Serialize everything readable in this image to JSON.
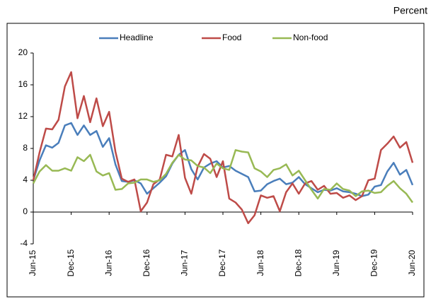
{
  "chart_data": {
    "type": "line",
    "unit_label": "Percent",
    "categories": [
      "Jun-15",
      null,
      null,
      null,
      null,
      null,
      "Dec-15",
      null,
      null,
      null,
      null,
      null,
      "Jun-16",
      null,
      null,
      null,
      null,
      null,
      "Dec-16",
      null,
      null,
      null,
      null,
      null,
      "Jun-17",
      null,
      null,
      null,
      null,
      null,
      "Dec-17",
      null,
      null,
      null,
      null,
      null,
      "Jun-18",
      null,
      null,
      null,
      null,
      null,
      "Dec-18",
      null,
      null,
      null,
      null,
      null,
      "Jun-19",
      null,
      null,
      null,
      null,
      null,
      "Dec-19",
      null,
      null,
      null,
      null,
      null,
      "Jun-20"
    ],
    "series": [
      {
        "name": "Headline",
        "color": "#4a7ebb",
        "values": [
          4.0,
          6.5,
          8.4,
          8.1,
          8.7,
          10.9,
          11.2,
          9.7,
          10.9,
          9.7,
          10.2,
          8.2,
          9.3,
          6.0,
          3.9,
          3.8,
          4.0,
          3.6,
          2.3,
          3.0,
          3.7,
          4.5,
          6.1,
          7.2,
          7.8,
          5.4,
          4.1,
          5.6,
          6.1,
          6.4,
          5.6,
          5.8,
          5.2,
          4.8,
          4.4,
          2.6,
          2.7,
          3.5,
          3.9,
          4.2,
          3.5,
          3.7,
          4.4,
          3.5,
          3.0,
          2.5,
          2.8,
          2.7,
          3.0,
          2.6,
          2.5,
          2.3,
          2.0,
          2.2,
          3.2,
          3.4,
          5.1,
          6.2,
          4.7,
          5.3,
          3.4
        ]
      },
      {
        "name": "Food",
        "color": "#be4b48",
        "values": [
          4.0,
          7.5,
          10.5,
          10.4,
          11.6,
          15.8,
          17.6,
          11.8,
          14.6,
          11.3,
          14.3,
          10.8,
          12.6,
          7.6,
          4.2,
          3.8,
          4.1,
          0.1,
          1.2,
          3.5,
          4.1,
          7.2,
          7.0,
          9.7,
          4.3,
          2.3,
          5.7,
          7.3,
          6.7,
          4.4,
          6.4,
          1.7,
          1.2,
          0.3,
          -1.4,
          -0.4,
          2.1,
          1.8,
          2.0,
          0.1,
          2.5,
          3.6,
          2.3,
          3.6,
          3.9,
          2.8,
          3.3,
          2.3,
          2.4,
          1.8,
          2.1,
          1.5,
          2.0,
          4.0,
          4.2,
          7.8,
          8.6,
          9.5,
          8.1,
          8.8,
          6.2
        ]
      },
      {
        "name": "Non-food",
        "color": "#98b954",
        "values": [
          3.6,
          5.1,
          5.9,
          5.2,
          5.2,
          5.5,
          5.2,
          6.9,
          6.4,
          7.2,
          5.1,
          4.6,
          4.9,
          2.8,
          2.9,
          3.6,
          3.7,
          4.1,
          4.1,
          3.8,
          4.0,
          4.8,
          6.2,
          7.2,
          6.6,
          6.5,
          5.8,
          5.6,
          4.9,
          6.1,
          5.5,
          5.3,
          7.8,
          7.6,
          7.5,
          5.5,
          5.1,
          4.4,
          5.3,
          5.5,
          6.0,
          4.6,
          5.2,
          4.0,
          2.8,
          1.7,
          2.9,
          2.8,
          3.6,
          2.9,
          2.7,
          2.0,
          2.6,
          2.7,
          2.4,
          2.5,
          3.3,
          3.9,
          3.0,
          2.3,
          1.2
        ]
      }
    ],
    "ylim": [
      -4,
      20
    ],
    "yticks": [
      -4,
      0,
      4,
      8,
      12,
      16,
      20
    ],
    "legend": "top"
  }
}
